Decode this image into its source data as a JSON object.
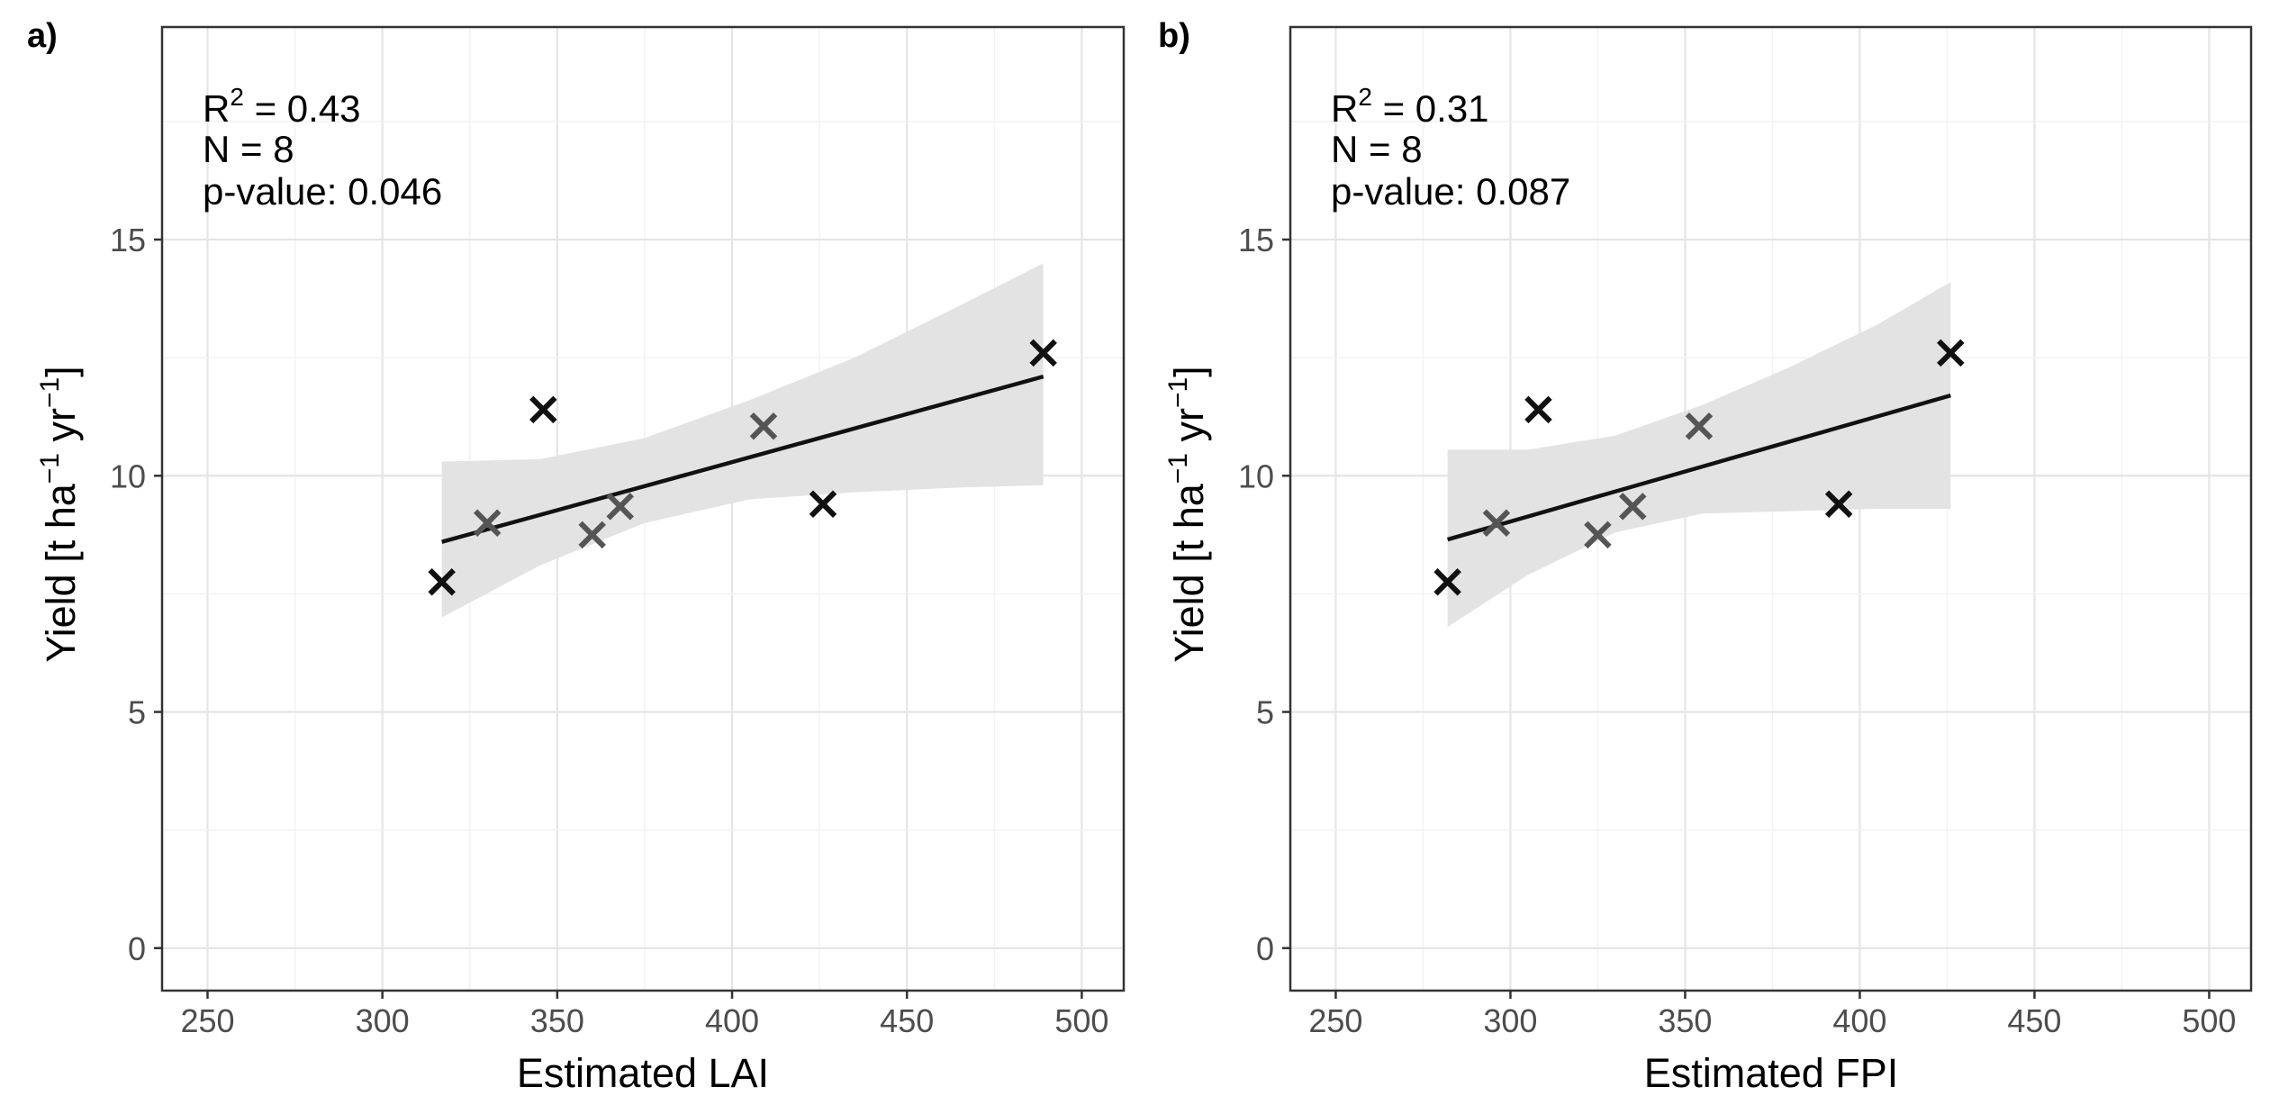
{
  "chart_data": [
    {
      "type": "scatter",
      "panel_label": "a)",
      "xlabel": "Estimated LAI",
      "ylabel_main": "Yield [t ha",
      "ylabel_sup1": "−1",
      "ylabel_mid": " yr",
      "ylabel_sup2": "−1",
      "ylabel_end": "]",
      "xlim": [
        237,
        512
      ],
      "ylim": [
        -0.9,
        19.5
      ],
      "xticks": [
        250,
        300,
        350,
        400,
        450,
        500
      ],
      "yticks": [
        0,
        5,
        10,
        15
      ],
      "x_tick_labels": [
        "250",
        "300",
        "350",
        "400",
        "450",
        "500"
      ],
      "y_tick_labels": [
        "0",
        "5",
        "10",
        "15"
      ],
      "points": [
        {
          "x": 317,
          "y": 7.75,
          "tone": "dark"
        },
        {
          "x": 330,
          "y": 9.0,
          "tone": "grey"
        },
        {
          "x": 346,
          "y": 11.4,
          "tone": "dark"
        },
        {
          "x": 360,
          "y": 8.75,
          "tone": "grey"
        },
        {
          "x": 368,
          "y": 9.35,
          "tone": "grey"
        },
        {
          "x": 409,
          "y": 11.05,
          "tone": "grey"
        },
        {
          "x": 426,
          "y": 9.4,
          "tone": "dark"
        },
        {
          "x": 489,
          "y": 12.6,
          "tone": "dark"
        }
      ],
      "fit": {
        "x": [
          317,
          489
        ],
        "y": [
          8.6,
          12.1
        ]
      },
      "ci_band": {
        "x": [
          317,
          345,
          375,
          405,
          435,
          465,
          489
        ],
        "upper": [
          10.3,
          10.35,
          10.8,
          11.6,
          12.5,
          13.6,
          14.5
        ],
        "lower": [
          7.0,
          8.1,
          9.0,
          9.5,
          9.65,
          9.75,
          9.8
        ]
      },
      "annotations": {
        "r2_prefix": "R",
        "r2_sup": "2",
        "r2_value": " = 0.43",
        "n": "N = 8",
        "p": "p-value: 0.046"
      }
    },
    {
      "type": "scatter",
      "panel_label": "b)",
      "xlabel": "Estimated FPI",
      "ylabel_main": "Yield [t ha",
      "ylabel_sup1": "−1",
      "ylabel_mid": " yr",
      "ylabel_sup2": "−1",
      "ylabel_end": "]",
      "xlim": [
        237,
        512
      ],
      "ylim": [
        -0.9,
        19.5
      ],
      "xticks": [
        250,
        300,
        350,
        400,
        450,
        500
      ],
      "yticks": [
        0,
        5,
        10,
        15
      ],
      "x_tick_labels": [
        "250",
        "300",
        "350",
        "400",
        "450",
        "500"
      ],
      "y_tick_labels": [
        "0",
        "5",
        "10",
        "15"
      ],
      "points": [
        {
          "x": 282,
          "y": 7.75,
          "tone": "dark"
        },
        {
          "x": 296,
          "y": 9.0,
          "tone": "grey"
        },
        {
          "x": 308,
          "y": 11.4,
          "tone": "dark"
        },
        {
          "x": 325,
          "y": 8.75,
          "tone": "grey"
        },
        {
          "x": 335,
          "y": 9.35,
          "tone": "grey"
        },
        {
          "x": 354,
          "y": 11.05,
          "tone": "grey"
        },
        {
          "x": 394,
          "y": 9.4,
          "tone": "dark"
        },
        {
          "x": 426,
          "y": 12.6,
          "tone": "dark"
        }
      ],
      "fit": {
        "x": [
          282,
          426
        ],
        "y": [
          8.65,
          11.7
        ]
      },
      "ci_band": {
        "x": [
          282,
          305,
          330,
          355,
          380,
          405,
          426
        ],
        "upper": [
          10.55,
          10.55,
          10.85,
          11.5,
          12.3,
          13.2,
          14.1
        ],
        "lower": [
          6.8,
          7.9,
          8.8,
          9.2,
          9.25,
          9.3,
          9.3
        ]
      },
      "annotations": {
        "r2_prefix": "R",
        "r2_sup": "2",
        "r2_value": " = 0.31",
        "n": "N = 8",
        "p": "p-value: 0.087"
      }
    }
  ],
  "colors": {
    "panel_border": "#333333",
    "grid_major": "#e5e5e5",
    "grid_minor": "#f2f2f2",
    "ci_band": "#e3e3e3",
    "fit_line": "#111111",
    "point_dark": "#111111",
    "point_grey": "#555555",
    "tick_label": "#4d4d4d",
    "text": "#000000"
  }
}
